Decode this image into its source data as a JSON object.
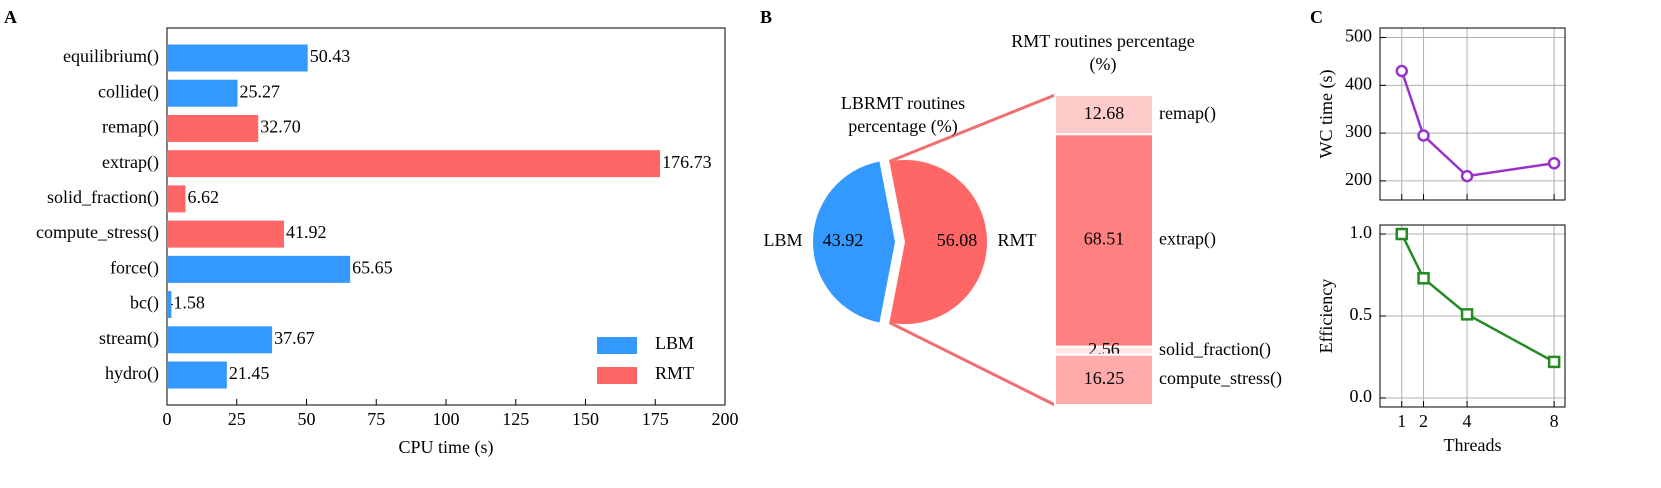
{
  "chart_data": [
    {
      "type": "barh",
      "panel_label": "A",
      "xlabel": "CPU time (s)",
      "categories": [
        "equilibrium()",
        "collide()",
        "remap()",
        "extrap()",
        "solid_fraction()",
        "compute_stress()",
        "force()",
        "bc()",
        "stream()",
        "hydro()"
      ],
      "series": [
        {
          "name": "LBM",
          "color": "#3399ff",
          "values": [
            50.43,
            25.27,
            null,
            null,
            null,
            null,
            65.65,
            1.58,
            37.67,
            21.45
          ]
        },
        {
          "name": "RMT",
          "color": "#ff6666",
          "values": [
            null,
            null,
            32.7,
            176.73,
            6.62,
            41.92,
            null,
            null,
            null,
            null
          ],
          "value_labels": [
            null,
            null,
            "32.70",
            "176.73",
            "6.62",
            "41.92",
            null,
            null,
            null,
            null
          ]
        }
      ],
      "xlim": [
        0,
        200
      ],
      "xticks": [
        0,
        25,
        50,
        75,
        100,
        125,
        150,
        175,
        200
      ],
      "legend": "lower right"
    },
    {
      "type": "pie",
      "panel_label": "B",
      "title": "LBRMT routines percentage (%)",
      "categories": [
        "LBM",
        "RMT"
      ],
      "values": [
        43.92,
        56.08
      ],
      "colors": [
        "#3399ff",
        "#ff6666"
      ]
    },
    {
      "type": "stacked_bar",
      "title": "RMT routines percentage (%)",
      "series": [
        {
          "name": "remap()",
          "color": "#ffcaca",
          "values": [
            12.68
          ]
        },
        {
          "name": "extrap()",
          "color": "#ff8080",
          "values": [
            68.51
          ]
        },
        {
          "name": "solid_fraction()",
          "color": "#ffe6e6",
          "values": [
            2.56
          ]
        },
        {
          "name": "compute_stress()",
          "color": "#ffabab",
          "values": [
            16.25
          ]
        }
      ]
    },
    {
      "type": "line",
      "panel_label": "C",
      "ylabel": "WC time (s)",
      "marker": "circle",
      "x": [
        1,
        2,
        4,
        8
      ],
      "series": [
        {
          "color": "#9932cc",
          "values": [
            430,
            295,
            210,
            237
          ]
        }
      ],
      "xlim": [
        0,
        8.5
      ],
      "ylim": [
        160,
        520
      ],
      "xticks": [
        1,
        2,
        4,
        8
      ],
      "yticks": [
        200,
        300,
        400,
        500
      ],
      "grid": true
    },
    {
      "type": "line",
      "ylabel": "Efficiency",
      "xlabel": "Threads",
      "marker": "square",
      "x": [
        1,
        2,
        4,
        8
      ],
      "series": [
        {
          "color": "#228b22",
          "values": [
            1.0,
            0.73,
            0.51,
            0.22
          ]
        }
      ],
      "xlim": [
        0,
        8.5
      ],
      "ylim": [
        -0.055,
        1.055
      ],
      "xticks": [
        1,
        2,
        4,
        8
      ],
      "yticks": [
        {
          "value": 0,
          "label": "0.0"
        },
        0.5,
        {
          "value": 1,
          "label": "1.0"
        }
      ],
      "grid": true
    }
  ]
}
